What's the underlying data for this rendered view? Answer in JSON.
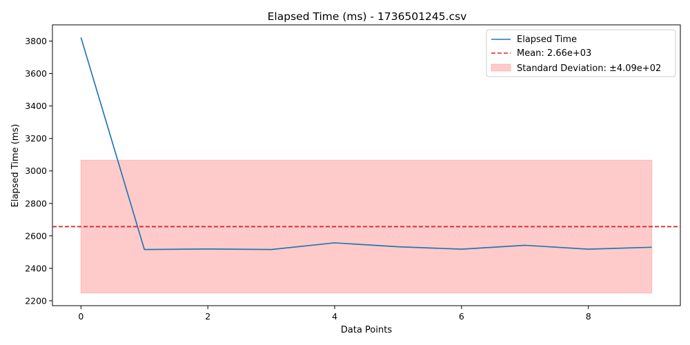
{
  "chart_data": {
    "type": "line",
    "title": "Elapsed Time (ms) - 1736501245.csv",
    "xlabel": "Data Points",
    "ylabel": "Elapsed Time (ms)",
    "xlim": [
      -0.45,
      9.45
    ],
    "ylim": [
      2170,
      3900
    ],
    "xticks": [
      0,
      2,
      4,
      6,
      8
    ],
    "yticks": [
      2200,
      2400,
      2600,
      2800,
      3000,
      3200,
      3400,
      3600,
      3800
    ],
    "grid": false,
    "legend_position": "top-right",
    "series": [
      {
        "name": "Elapsed Time",
        "color": "#1f77b4",
        "x": [
          0,
          1,
          2,
          3,
          4,
          5,
          6,
          7,
          8,
          9
        ],
        "values": [
          3822,
          2516,
          2519,
          2516,
          2557,
          2533,
          2518,
          2542,
          2518,
          2530
        ]
      }
    ],
    "mean": {
      "label": "Mean: 2.66e+03",
      "value": 2657,
      "color": "#d62728"
    },
    "std_band": {
      "label": "Standard Deviation: ±4.09e+02",
      "lower": 2248,
      "upper": 3066,
      "x_range": [
        0,
        9
      ],
      "color": "#ff9896"
    }
  }
}
